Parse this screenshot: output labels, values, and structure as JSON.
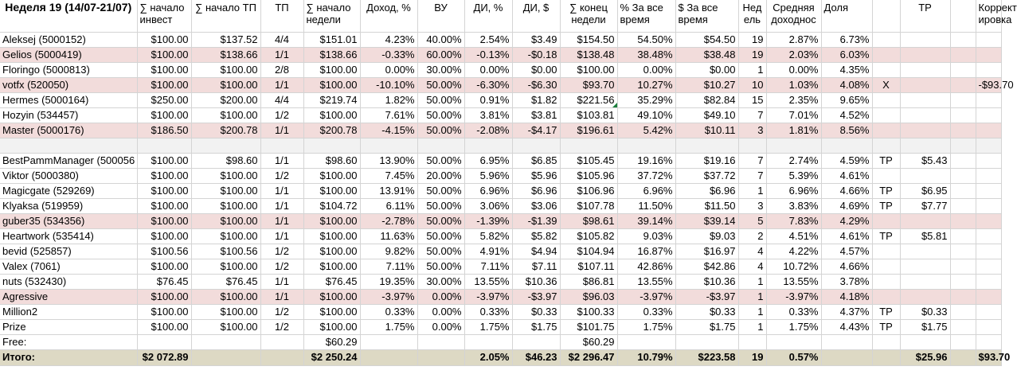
{
  "headers": [
    "Неделя 19 (14/07-21/07)",
    "∑ начало инвест",
    "∑ начало ТП",
    "ТП",
    "∑ начало недели",
    "Доход, %",
    "ВУ",
    "ДИ, %",
    "ДИ, $",
    "∑ конец недели",
    "% За все время",
    "$ За все время",
    "Нед ель",
    "Средняя доходнос",
    "Доля",
    "",
    "ТР",
    "",
    "Коррект ировка"
  ],
  "rows": [
    {
      "style": "white",
      "cells": [
        "Aleksej (5000152)",
        "$100.00",
        "$137.52",
        "4/4",
        "$151.01",
        "4.23%",
        "40.00%",
        "2.54%",
        "$3.49",
        "$154.50",
        "54.50%",
        "$54.50",
        "19",
        "2.87%",
        "6.73%",
        "",
        "",
        "",
        ""
      ]
    },
    {
      "style": "pink",
      "cells": [
        "Gelios (5000419)",
        "$100.00",
        "$138.66",
        "1/1",
        "$138.66",
        "-0.33%",
        "60.00%",
        "-0.13%",
        "-$0.18",
        "$138.48",
        "38.48%",
        "$38.48",
        "19",
        "2.03%",
        "6.03%",
        "",
        "",
        "",
        ""
      ]
    },
    {
      "style": "white",
      "cells": [
        "Floringo (5000813)",
        "$100.00",
        "$100.00",
        "2/8",
        "$100.00",
        "0.00%",
        "30.00%",
        "0.00%",
        "$0.00",
        "$100.00",
        "0.00%",
        "$0.00",
        "1",
        "0.00%",
        "4.35%",
        "",
        "",
        "",
        ""
      ]
    },
    {
      "style": "pink",
      "cells": [
        "votfx (520050)",
        "$100.00",
        "$100.00",
        "1/1",
        "$100.00",
        "-10.10%",
        "50.00%",
        "-6.30%",
        "-$6.30",
        "$93.70",
        "10.27%",
        "$10.27",
        "10",
        "1.03%",
        "4.08%",
        "X",
        "",
        "",
        "-$93.70"
      ]
    },
    {
      "style": "white",
      "flag": true,
      "cells": [
        "Hermes (5000164)",
        "$250.00",
        "$200.00",
        "4/4",
        "$219.74",
        "1.82%",
        "50.00%",
        "0.91%",
        "$1.82",
        "$221.56",
        "35.29%",
        "$82.84",
        "15",
        "2.35%",
        "9.65%",
        "",
        "",
        "",
        ""
      ]
    },
    {
      "style": "white",
      "cells": [
        "Hozyin (534457)",
        "$100.00",
        "$100.00",
        "1/2",
        "$100.00",
        "7.61%",
        "50.00%",
        "3.81%",
        "$3.81",
        "$103.81",
        "49.10%",
        "$49.10",
        "7",
        "7.01%",
        "4.52%",
        "",
        "",
        "",
        ""
      ]
    },
    {
      "style": "pink",
      "cells": [
        "Master (5000176)",
        "$186.50",
        "$200.78",
        "1/1",
        "$200.78",
        "-4.15%",
        "50.00%",
        "-2.08%",
        "-$4.17",
        "$196.61",
        "5.42%",
        "$10.11",
        "3",
        "1.81%",
        "8.56%",
        "",
        "",
        "",
        ""
      ]
    },
    {
      "style": "blank",
      "cells": [
        "",
        "",
        "",
        "",
        "",
        "",
        "",
        "",
        "",
        "",
        "",
        "",
        "",
        "",
        "",
        "",
        "",
        "",
        ""
      ]
    },
    {
      "style": "white",
      "cells": [
        "BestPammManager (500056",
        "$100.00",
        "$98.60",
        "1/1",
        "$98.60",
        "13.90%",
        "50.00%",
        "6.95%",
        "$6.85",
        "$105.45",
        "19.16%",
        "$19.16",
        "7",
        "2.74%",
        "4.59%",
        "TP",
        "$5.43",
        "",
        ""
      ]
    },
    {
      "style": "white",
      "cells": [
        "Viktor (5000380)",
        "$100.00",
        "$100.00",
        "1/2",
        "$100.00",
        "7.45%",
        "20.00%",
        "5.96%",
        "$5.96",
        "$105.96",
        "37.72%",
        "$37.72",
        "7",
        "5.39%",
        "4.61%",
        "",
        "",
        "",
        ""
      ]
    },
    {
      "style": "white",
      "cells": [
        "Magicgate (529269)",
        "$100.00",
        "$100.00",
        "1/1",
        "$100.00",
        "13.91%",
        "50.00%",
        "6.96%",
        "$6.96",
        "$106.96",
        "6.96%",
        "$6.96",
        "1",
        "6.96%",
        "4.66%",
        "TP",
        "$6.95",
        "",
        ""
      ]
    },
    {
      "style": "white",
      "cells": [
        "Klyaksa (519959)",
        "$100.00",
        "$100.00",
        "1/1",
        "$104.72",
        "6.11%",
        "50.00%",
        "3.06%",
        "$3.06",
        "$107.78",
        "11.50%",
        "$11.50",
        "3",
        "3.83%",
        "4.69%",
        "TP",
        "$7.77",
        "",
        ""
      ]
    },
    {
      "style": "pink",
      "cells": [
        "guber35 (534356)",
        "$100.00",
        "$100.00",
        "1/1",
        "$100.00",
        "-2.78%",
        "50.00%",
        "-1.39%",
        "-$1.39",
        "$98.61",
        "39.14%",
        "$39.14",
        "5",
        "7.83%",
        "4.29%",
        "",
        "",
        "",
        ""
      ]
    },
    {
      "style": "white",
      "cells": [
        "Heartwork (535414)",
        "$100.00",
        "$100.00",
        "1/1",
        "$100.00",
        "11.63%",
        "50.00%",
        "5.82%",
        "$5.82",
        "$105.82",
        "9.03%",
        "$9.03",
        "2",
        "4.51%",
        "4.61%",
        "TP",
        "$5.81",
        "",
        ""
      ]
    },
    {
      "style": "white",
      "cells": [
        "bevid (525857)",
        "$100.56",
        "$100.56",
        "1/2",
        "$100.00",
        "9.82%",
        "50.00%",
        "4.91%",
        "$4.94",
        "$104.94",
        "16.87%",
        "$16.97",
        "4",
        "4.22%",
        "4.57%",
        "",
        "",
        "",
        ""
      ]
    },
    {
      "style": "white",
      "cells": [
        "Valex (7061)",
        "$100.00",
        "$100.00",
        "1/2",
        "$100.00",
        "7.11%",
        "50.00%",
        "7.11%",
        "$7.11",
        "$107.11",
        "42.86%",
        "$42.86",
        "4",
        "10.72%",
        "4.66%",
        "",
        "",
        "",
        ""
      ]
    },
    {
      "style": "white",
      "cells": [
        "nuts (532430)",
        "$76.45",
        "$76.45",
        "1/1",
        "$76.45",
        "19.35%",
        "30.00%",
        "13.55%",
        "$10.36",
        "$86.81",
        "13.55%",
        "$10.36",
        "1",
        "13.55%",
        "3.78%",
        "",
        "",
        "",
        ""
      ]
    },
    {
      "style": "pink",
      "cells": [
        "Agressive",
        "$100.00",
        "$100.00",
        "1/1",
        "$100.00",
        "-3.97%",
        "0.00%",
        "-3.97%",
        "-$3.97",
        "$96.03",
        "-3.97%",
        "-$3.97",
        "1",
        "-3.97%",
        "4.18%",
        "",
        "",
        "",
        ""
      ]
    },
    {
      "style": "white",
      "cells": [
        "Million2",
        "$100.00",
        "$100.00",
        "1/2",
        "$100.00",
        "0.33%",
        "0.00%",
        "0.33%",
        "$0.33",
        "$100.33",
        "0.33%",
        "$0.33",
        "1",
        "0.33%",
        "4.37%",
        "TP",
        "$0.33",
        "",
        ""
      ]
    },
    {
      "style": "white",
      "cells": [
        "Prize",
        "$100.00",
        "$100.00",
        "1/2",
        "$100.00",
        "1.75%",
        "0.00%",
        "1.75%",
        "$1.75",
        "$101.75",
        "1.75%",
        "$1.75",
        "1",
        "1.75%",
        "4.43%",
        "TP",
        "$1.75",
        "",
        ""
      ]
    },
    {
      "style": "white",
      "cells": [
        "Free:",
        "",
        "",
        "",
        "$60.29",
        "",
        "",
        "",
        "",
        "$60.29",
        "",
        "",
        "",
        "",
        "",
        "",
        "",
        "",
        ""
      ]
    },
    {
      "style": "total",
      "cells": [
        "Итого:",
        "$2 072.89",
        "",
        "",
        "$2 250.24",
        "",
        "",
        "2.05%",
        "$46.23",
        "$2 296.47",
        "10.79%",
        "$223.58",
        "19",
        "0.57%",
        "",
        "",
        "$25.96",
        "",
        "$93.70"
      ]
    }
  ]
}
